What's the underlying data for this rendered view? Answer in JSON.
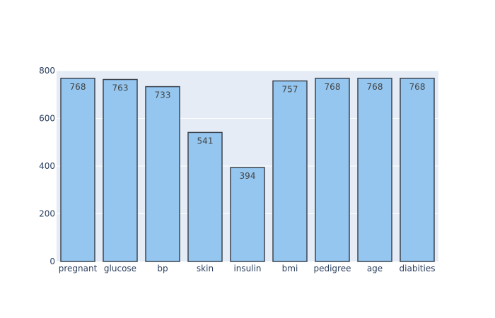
{
  "colors": {
    "plot_bg": "#e5ecf6",
    "grid": "#ffffff",
    "bar_fill": "#94c6ef",
    "bar_stroke": "#3d4550",
    "text": "#2a3f5f",
    "label_text": "#444444"
  },
  "chart_data": {
    "type": "bar",
    "title": "",
    "xlabel": "",
    "ylabel": "",
    "categories": [
      "pregnant",
      "glucose",
      "bp",
      "skin",
      "insulin",
      "bmi",
      "pedigree",
      "age",
      "diabities"
    ],
    "values": [
      768,
      763,
      733,
      541,
      394,
      757,
      768,
      768,
      768
    ],
    "data_labels": [
      "768",
      "763",
      "733",
      "541",
      "394",
      "757",
      "768",
      "768",
      "768"
    ],
    "ylim": [
      0,
      800
    ],
    "y_ticks": [
      0,
      200,
      400,
      600,
      800
    ],
    "grid": true,
    "legend": "none",
    "data_label_position": "inside-top"
  }
}
